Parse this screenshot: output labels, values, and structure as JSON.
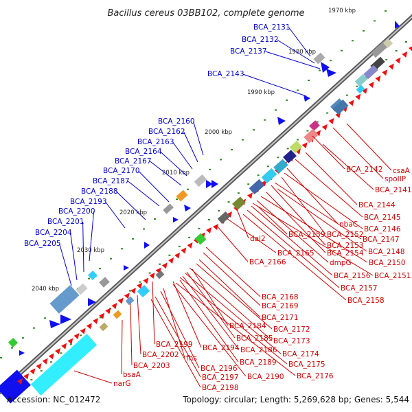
{
  "title": "Bacillus cereus 03BB102, complete genome",
  "footer": {
    "accession": "Accession: NC_012472",
    "topology": "Topology: circular; Length: 5,269,628 bp; Genes: 5,544"
  },
  "colors": {
    "forward_label": "#0000cc",
    "reverse_label": "#cc0000",
    "backbone": "#777777",
    "tick": "#2e8b22",
    "forward_gene": "#1010ee",
    "reverse_gene": "#ee1010"
  },
  "kbp_ticks": [
    "1970 kbp",
    "1980 kbp",
    "1990 kbp",
    "2000 kbp",
    "2010 kbp",
    "2020 kbp",
    "2030 kbp",
    "2040 kbp"
  ],
  "forward_labels": [
    "BCA_2131",
    "BCA_2132",
    "BCA_2137",
    "BCA_2143",
    "BCA_2160",
    "BCA_2162",
    "BCA_2163",
    "BCA_2164",
    "BCA_2167",
    "BCA_2170",
    "BCA_2187",
    "BCA_2188",
    "BCA_2193",
    "BCA_2200",
    "BCA_2201",
    "BCA_2204",
    "BCA_2205"
  ],
  "reverse_labels_right": [
    "csaA",
    "BCA_2142",
    "spoIIP",
    "BCA_2141",
    "BCA_2144",
    "BCA_2145",
    "nbaC",
    "BCA_2146",
    "BCA_2159",
    "BCA_2152",
    "BCA_2147",
    "dal2",
    "BCA_2153",
    "BCA_2148",
    "BCA_2165",
    "BCA_2154",
    "BCA_2150",
    "BCA_2166",
    "dmpG",
    "BCA_2151",
    "BCA_2156",
    "BCA_2157",
    "BCA_2158"
  ],
  "reverse_labels_bottom": [
    "BCA_2168",
    "BCA_2169",
    "BCA_2171",
    "BCA_2184",
    "BCA_2172",
    "BCA_2185",
    "BCA_2173",
    "BCA_2186",
    "BCA_2174",
    "BCA_2199",
    "BCA_2194",
    "BCA_2189",
    "BCA_2175",
    "BCA_2202",
    "fhs",
    "BCA_2176",
    "BCA_2203",
    "BCA_2196",
    "BCA_2190",
    "bsaA",
    "BCA_2197",
    "narG",
    "BCA_2198"
  ]
}
